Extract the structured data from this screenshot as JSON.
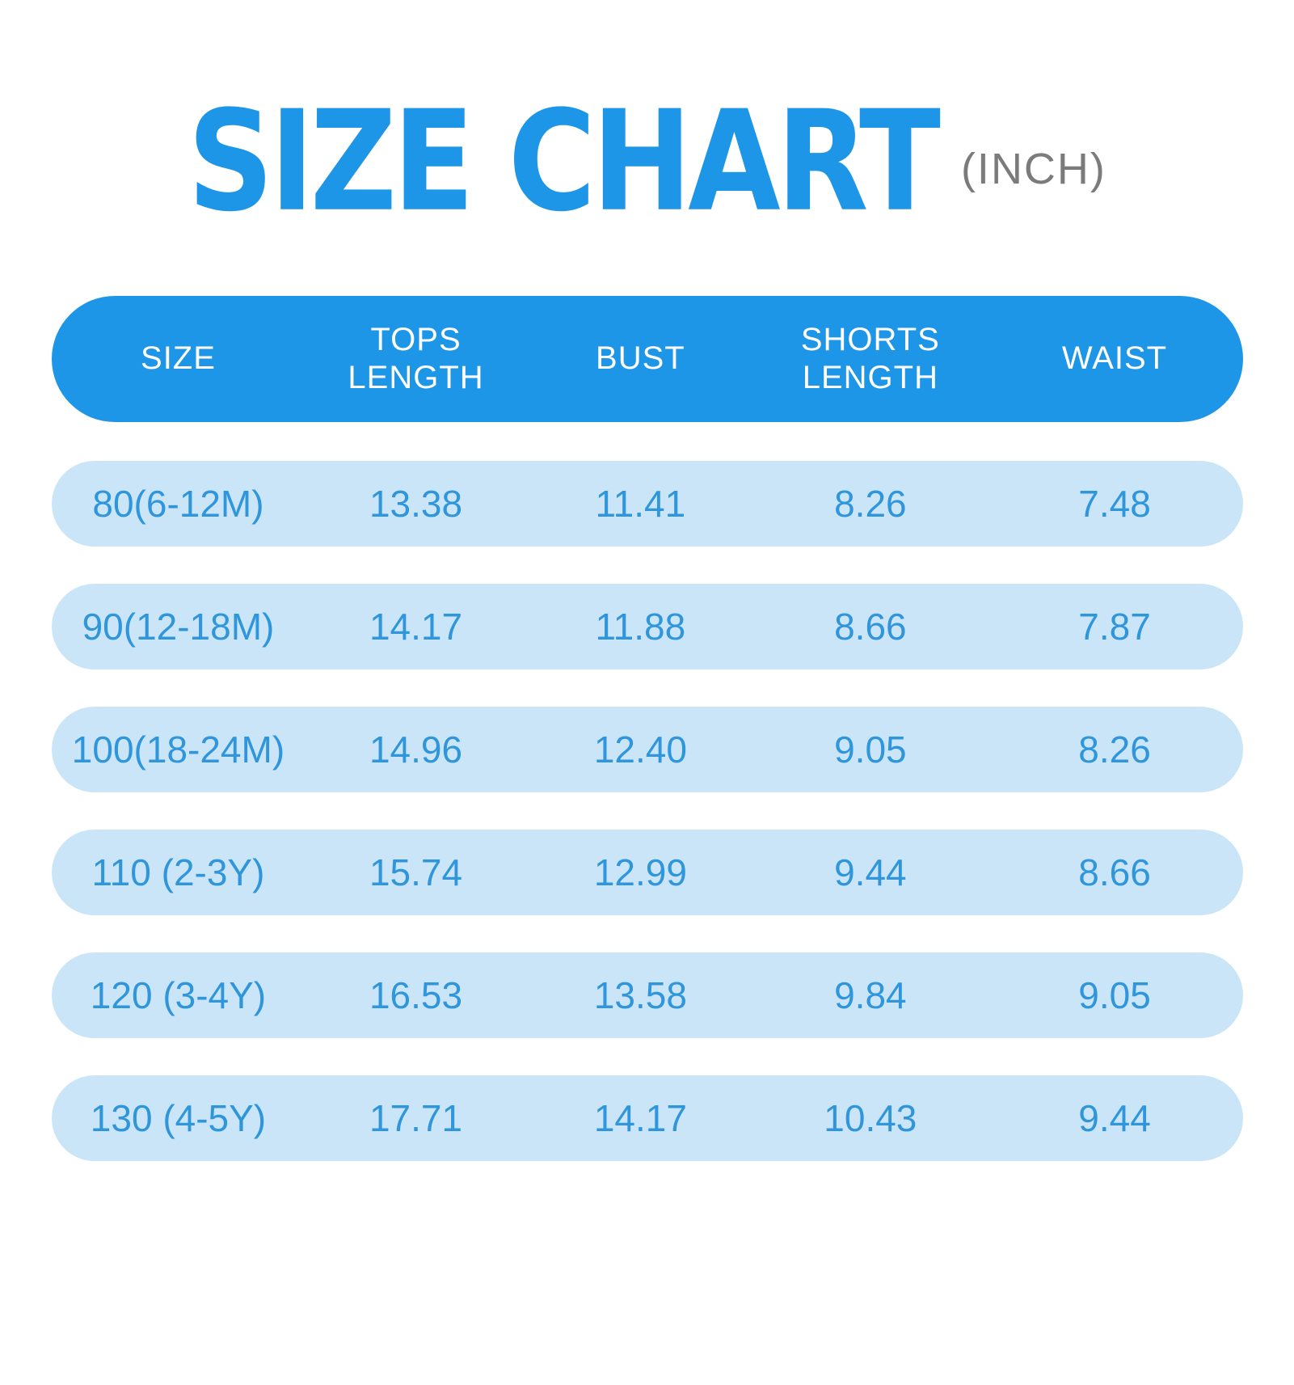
{
  "title": {
    "main": "SIZE CHART",
    "unit": "(INCH)"
  },
  "colors": {
    "accent_blue": "#1E96E8",
    "row_bg": "#CAE5F7",
    "row_text": "#2F96DC",
    "unit_gray": "#7B7B7B",
    "page_bg": "#FFFFFF"
  },
  "chart_data": {
    "type": "table",
    "title": "SIZE CHART",
    "unit_label": "(INCH)",
    "columns": [
      "SIZE",
      "TOPS LENGTH",
      "BUST",
      "SHORTS LENGTH",
      "WAIST"
    ],
    "rows": [
      [
        "80(6-12M)",
        "13.38",
        "11.41",
        "8.26",
        "7.48"
      ],
      [
        "90(12-18M)",
        "14.17",
        "11.88",
        "8.66",
        "7.87"
      ],
      [
        "100(18-24M)",
        "14.96",
        "12.40",
        "9.05",
        "8.26"
      ],
      [
        "110 (2-3Y)",
        "15.74",
        "12.99",
        "9.44",
        "8.66"
      ],
      [
        "120 (3-4Y)",
        "16.53",
        "13.58",
        "9.84",
        "9.05"
      ],
      [
        "130 (4-5Y)",
        "17.71",
        "14.17",
        "10.43",
        "9.44"
      ]
    ]
  }
}
